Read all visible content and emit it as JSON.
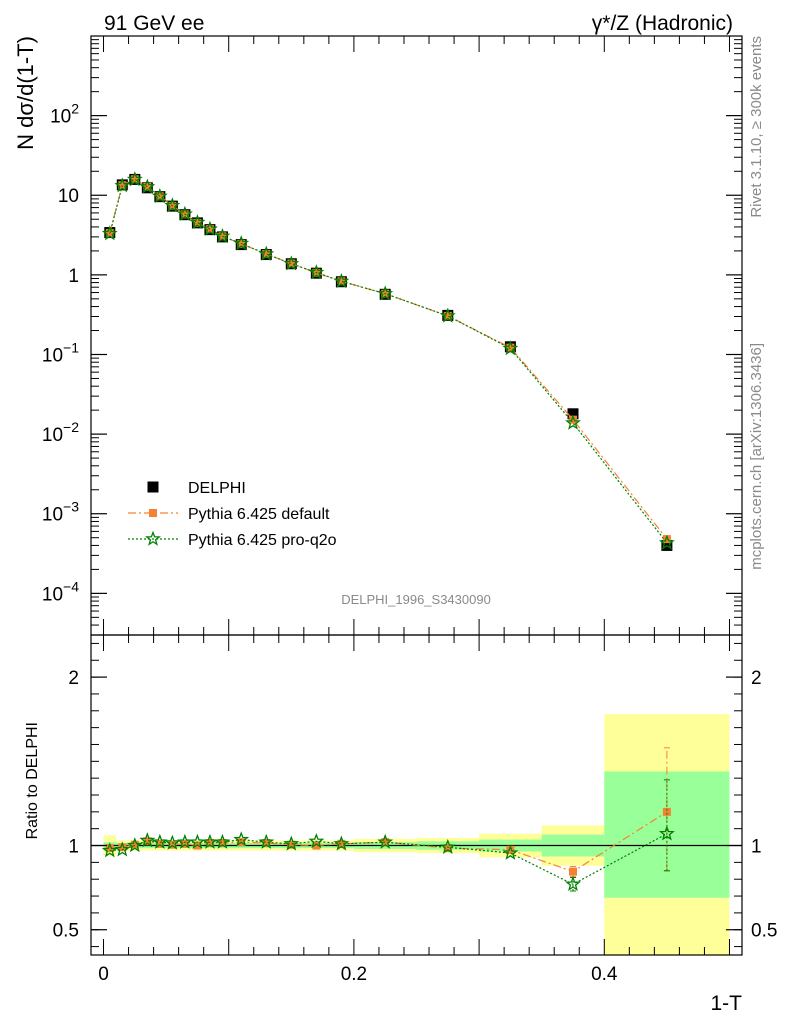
{
  "header": {
    "left_title": "91 GeV ee",
    "right_title": "γ*/Z (Hadronic)"
  },
  "side_labels": {
    "rivet": "Rivet 3.1.10, ≥ 300k events",
    "mcplots": "mcplots.cern.ch [arXiv:1306.3436]"
  },
  "chart_data": [
    {
      "type": "scatter",
      "panel": "main",
      "ylabel": "N dσ/d(1-T)",
      "xlabel": "1-T",
      "yscale": "log",
      "xlim": [
        -0.01,
        0.51
      ],
      "ylim": [
        3e-05,
        1000
      ],
      "y_ticks": [
        {
          "value": 0.0001,
          "base": "10",
          "exp": "−4"
        },
        {
          "value": 0.001,
          "base": "10",
          "exp": "−3"
        },
        {
          "value": 0.01,
          "base": "10",
          "exp": "−2"
        },
        {
          "value": 0.1,
          "base": "10",
          "exp": "−1"
        },
        {
          "value": 1,
          "base": "1",
          "exp": ""
        },
        {
          "value": 10,
          "base": "10",
          "exp": ""
        },
        {
          "value": 100,
          "base": "10",
          "exp": "2"
        }
      ],
      "watermark": "DELPHI_1996_S3430090",
      "legend": {
        "position": "lower-left",
        "entries": [
          "DELPHI",
          "Pythia 6.425 default",
          "Pythia 6.425 pro-q2o"
        ]
      },
      "x": [
        0.005,
        0.015,
        0.025,
        0.035,
        0.045,
        0.055,
        0.065,
        0.075,
        0.085,
        0.095,
        0.11,
        0.13,
        0.15,
        0.17,
        0.19,
        0.225,
        0.275,
        0.325,
        0.375,
        0.45
      ],
      "bin_edges": [
        0.0,
        0.01,
        0.02,
        0.03,
        0.04,
        0.05,
        0.06,
        0.07,
        0.08,
        0.09,
        0.1,
        0.12,
        0.14,
        0.16,
        0.18,
        0.2,
        0.25,
        0.3,
        0.35,
        0.4,
        0.5
      ],
      "series": [
        {
          "name": "DELPHI",
          "color": "#000000",
          "marker": "square",
          "values": [
            3.4,
            13.5,
            15.8,
            12.4,
            9.6,
            7.3,
            5.7,
            4.5,
            3.7,
            3.0,
            2.4,
            1.8,
            1.38,
            1.05,
            0.82,
            0.57,
            0.31,
            0.125,
            0.018,
            0.0004
          ]
        },
        {
          "name": "Pythia 6.425 default",
          "color": "#f58232",
          "marker": "square-small",
          "line": "dashdot",
          "values": [
            3.35,
            13.4,
            15.9,
            12.7,
            9.7,
            7.35,
            5.75,
            4.5,
            3.75,
            3.05,
            2.45,
            1.83,
            1.39,
            1.06,
            0.83,
            0.58,
            0.305,
            0.122,
            0.0152,
            0.00048
          ]
        },
        {
          "name": "Pythia 6.425 pro-q2o",
          "color": "#008000",
          "marker": "star",
          "line": "dotted",
          "values": [
            3.3,
            13.2,
            15.8,
            12.75,
            9.7,
            7.4,
            5.8,
            4.55,
            3.75,
            3.05,
            2.48,
            1.83,
            1.38,
            1.07,
            0.83,
            0.58,
            0.305,
            0.119,
            0.0138,
            0.00043
          ]
        }
      ]
    },
    {
      "type": "scatter",
      "panel": "ratio",
      "ylabel": "Ratio to DELPHI",
      "xlabel": "1-T",
      "yscale": "linear",
      "xlim": [
        -0.01,
        0.51
      ],
      "ylim": [
        0.35,
        2.25
      ],
      "y_ticks": [
        0.5,
        1,
        2
      ],
      "x_ticks": [
        0,
        0.2,
        0.4
      ],
      "x_tick_labels": [
        "0",
        "0.2",
        "0.4"
      ],
      "bands": {
        "stat_color": "#99ff99",
        "total_color": "#ffff99",
        "stat": [
          [
            0.97,
            1.02
          ],
          [
            0.985,
            1.015
          ],
          [
            0.985,
            1.015
          ],
          [
            0.985,
            1.015
          ],
          [
            0.985,
            1.015
          ],
          [
            0.985,
            1.015
          ],
          [
            0.985,
            1.015
          ],
          [
            0.985,
            1.015
          ],
          [
            0.985,
            1.015
          ],
          [
            0.985,
            1.015
          ],
          [
            0.985,
            1.015
          ],
          [
            0.985,
            1.015
          ],
          [
            0.985,
            1.015
          ],
          [
            0.985,
            1.015
          ],
          [
            0.985,
            1.015
          ],
          [
            0.98,
            1.02
          ],
          [
            0.975,
            1.025
          ],
          [
            0.965,
            1.035
          ],
          [
            0.935,
            1.065
          ],
          [
            0.69,
            1.44
          ]
        ],
        "total": [
          [
            0.94,
            1.06
          ],
          [
            0.97,
            1.03
          ],
          [
            0.97,
            1.03
          ],
          [
            0.97,
            1.03
          ],
          [
            0.97,
            1.03
          ],
          [
            0.97,
            1.03
          ],
          [
            0.97,
            1.03
          ],
          [
            0.97,
            1.03
          ],
          [
            0.97,
            1.03
          ],
          [
            0.97,
            1.03
          ],
          [
            0.97,
            1.03
          ],
          [
            0.97,
            1.03
          ],
          [
            0.97,
            1.03
          ],
          [
            0.97,
            1.03
          ],
          [
            0.97,
            1.03
          ],
          [
            0.96,
            1.04
          ],
          [
            0.955,
            1.045
          ],
          [
            0.93,
            1.07
          ],
          [
            0.88,
            1.12
          ],
          [
            0.35,
            1.78
          ]
        ]
      },
      "series": [
        {
          "name": "Pythia 6.425 default",
          "color": "#f58232",
          "marker": "square-small",
          "line": "dashdot",
          "values": [
            0.985,
            0.99,
            1.005,
            1.025,
            1.01,
            1.005,
            1.01,
            1.0,
            1.015,
            1.015,
            1.02,
            1.015,
            1.005,
            1.0,
            1.01,
            1.02,
            0.985,
            0.975,
            0.845,
            1.2
          ],
          "err_low": [
            0,
            0,
            0,
            0,
            0,
            0,
            0,
            0,
            0,
            0,
            0,
            0,
            0,
            0,
            0,
            0,
            0,
            0,
            0.03,
            0.35
          ],
          "err_high": [
            0,
            0,
            0,
            0,
            0,
            0,
            0,
            0,
            0,
            0,
            0,
            0,
            0,
            0,
            0,
            0,
            0,
            0,
            0.03,
            0.38
          ]
        },
        {
          "name": "Pythia 6.425 pro-q2o",
          "color": "#008000",
          "marker": "star",
          "line": "dotted",
          "values": [
            0.97,
            0.975,
            1.0,
            1.03,
            1.02,
            1.015,
            1.02,
            1.02,
            1.02,
            1.02,
            1.035,
            1.02,
            1.01,
            1.025,
            1.01,
            1.02,
            0.99,
            0.955,
            0.77,
            1.07
          ],
          "err_low": [
            0,
            0,
            0,
            0,
            0,
            0,
            0,
            0,
            0,
            0,
            0,
            0,
            0,
            0,
            0,
            0,
            0,
            0,
            0.04,
            0.22
          ],
          "err_high": [
            0,
            0,
            0,
            0,
            0,
            0,
            0,
            0,
            0,
            0,
            0,
            0,
            0,
            0,
            0,
            0,
            0,
            0,
            0.04,
            0.32
          ]
        }
      ]
    }
  ]
}
